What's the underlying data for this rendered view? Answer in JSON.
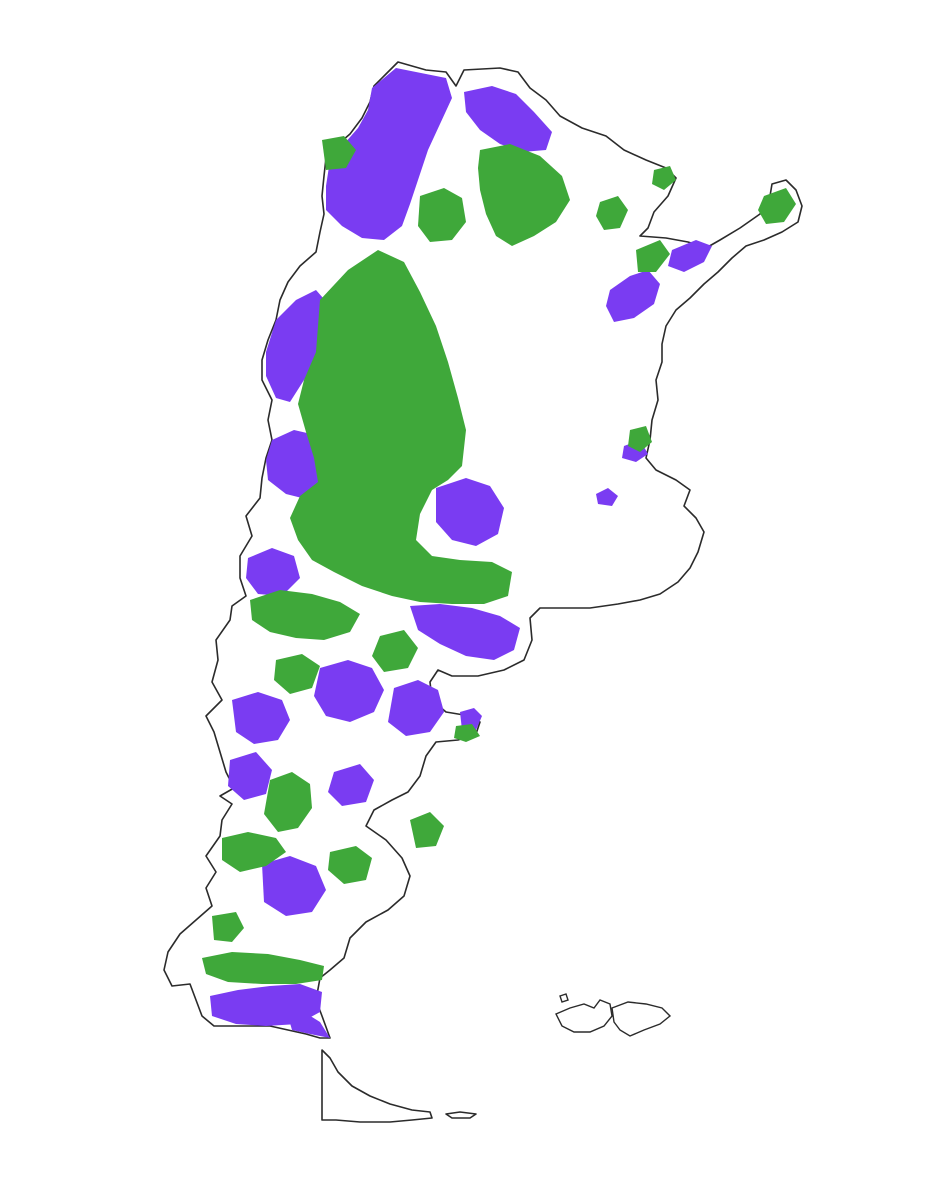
{
  "map": {
    "region": "Argentina",
    "colors": {
      "background": "#ffffff",
      "outline": "#2b2b2b",
      "class_a": "#7a3cf2",
      "class_b": "#3fa83a"
    },
    "legend": [],
    "labels": []
  }
}
